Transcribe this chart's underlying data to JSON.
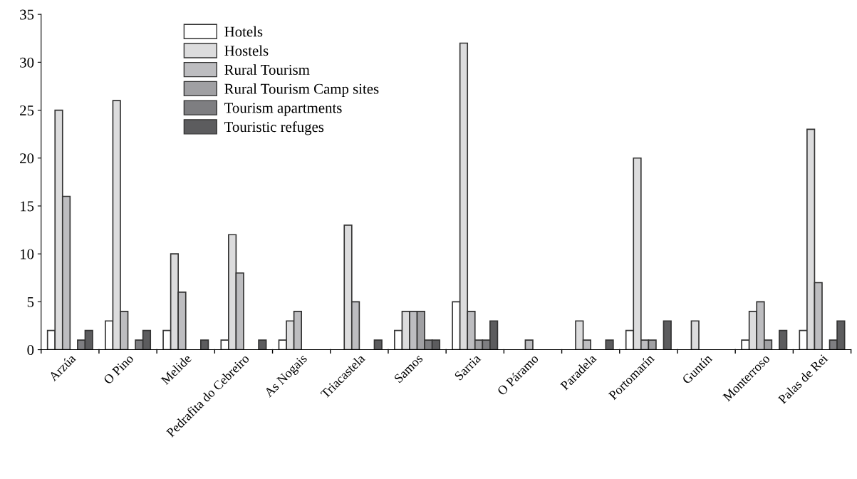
{
  "chart_data": {
    "type": "bar",
    "categories": [
      "Arzúa",
      "O Pino",
      "Melide",
      "Pedrafita do Cebreiro",
      "As Nogais",
      "Triacastela",
      "Samos",
      "Sarria",
      "O Páramo",
      "Paradela",
      "Portomarín",
      "Guntín",
      "Monterroso",
      "Palas de Rei"
    ],
    "series": [
      {
        "name": "Hotels",
        "color": "#ffffff",
        "values": [
          2,
          3,
          2,
          1,
          1,
          0,
          2,
          5,
          0,
          0,
          2,
          0,
          1,
          2
        ]
      },
      {
        "name": "Hostels",
        "color": "#dcdcdd",
        "values": [
          25,
          26,
          10,
          12,
          3,
          13,
          4,
          32,
          0,
          3,
          20,
          3,
          4,
          23
        ]
      },
      {
        "name": "Rural Tourism",
        "color": "#bdbdc0",
        "values": [
          16,
          4,
          6,
          8,
          4,
          5,
          4,
          4,
          1,
          1,
          1,
          0,
          5,
          7
        ]
      },
      {
        "name": "Rural Tourism Camp sites",
        "color": "#a0a0a3",
        "values": [
          0,
          0,
          0,
          0,
          0,
          0,
          4,
          1,
          0,
          0,
          1,
          0,
          1,
          0
        ]
      },
      {
        "name": "Tourism apartments",
        "color": "#7e7e81",
        "values": [
          1,
          1,
          0,
          0,
          0,
          0,
          1,
          1,
          0,
          0,
          0,
          0,
          0,
          1
        ]
      },
      {
        "name": "Touristic refuges",
        "color": "#5c5c5e",
        "values": [
          2,
          2,
          1,
          1,
          0,
          1,
          1,
          3,
          0,
          1,
          3,
          0,
          2,
          3
        ]
      }
    ],
    "ylim": [
      0,
      35
    ],
    "yticks": [
      0,
      5,
      10,
      15,
      20,
      25,
      30,
      35
    ],
    "legend": "top left",
    "grid": false
  }
}
